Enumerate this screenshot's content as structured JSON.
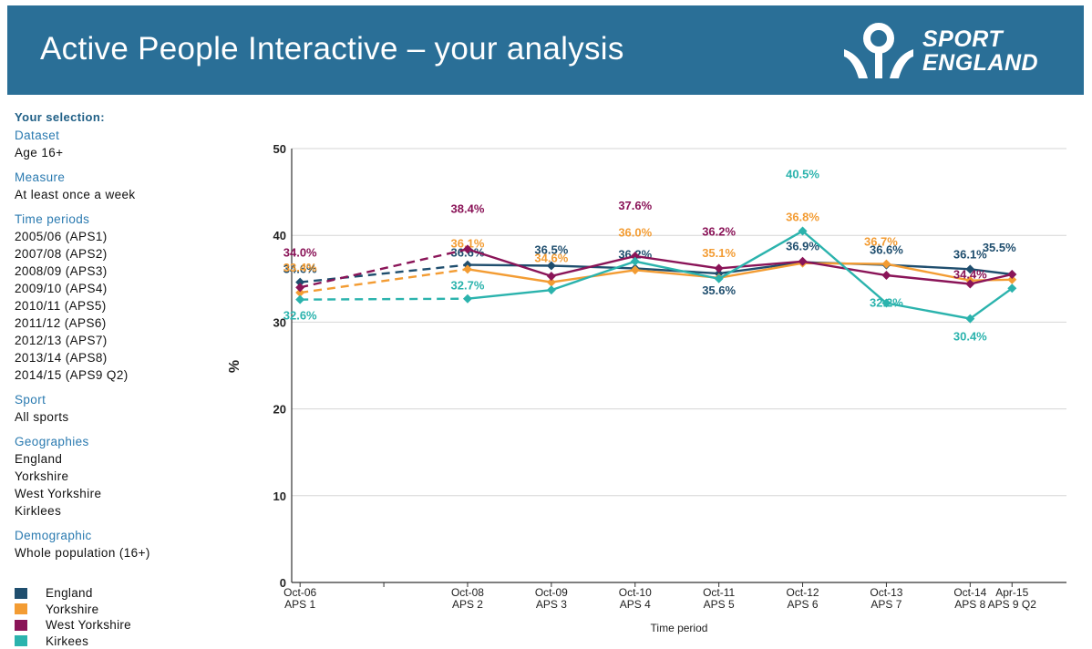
{
  "header": {
    "title": "Active People Interactive – your analysis",
    "logo_line1": "SPORT",
    "logo_line2": "ENGLAND",
    "background": "#2a6f97"
  },
  "selection": {
    "heading": "Your selection:",
    "dataset_label": "Dataset",
    "dataset_value": "Age 16+",
    "measure_label": "Measure",
    "measure_value": "At least once a week",
    "time_periods_label": "Time periods",
    "time_periods": [
      "2005/06 (APS1)",
      "2007/08 (APS2)",
      "2008/09 (APS3)",
      "2009/10 (APS4)",
      "2010/11 (APS5)",
      "2011/12 (APS6)",
      "2012/13 (APS7)",
      "2013/14 (APS8)",
      "2014/15 (APS9 Q2)"
    ],
    "sport_label": "Sport",
    "sport_value": "All sports",
    "geographies_label": "Geographies",
    "geographies": [
      "England",
      "Yorkshire",
      "West Yorkshire",
      "Kirklees"
    ],
    "demographic_label": "Demographic",
    "demographic_value": "Whole population (16+)"
  },
  "legend": [
    {
      "label": "England",
      "color": "#1f4e6e"
    },
    {
      "label": "Yorkshire",
      "color": "#f39c33"
    },
    {
      "label": "West Yorkshire",
      "color": "#8a1458"
    },
    {
      "label": "Kirkees",
      "color": "#2bb3ad"
    }
  ],
  "chart_data": {
    "type": "line",
    "ylabel": "%",
    "xlabel": "Time period",
    "ylim": [
      0,
      50
    ],
    "yticks": [
      "0",
      "10",
      "20",
      "30",
      "40",
      "50"
    ],
    "categories": [
      {
        "top": "Oct-06",
        "bottom": "APS 1"
      },
      {
        "top": "Oct-08",
        "bottom": "APS 2"
      },
      {
        "top": "Oct-09",
        "bottom": "APS 3"
      },
      {
        "top": "Oct-10",
        "bottom": "APS 4"
      },
      {
        "top": "Oct-11",
        "bottom": "APS 5"
      },
      {
        "top": "Oct-12",
        "bottom": "APS 6"
      },
      {
        "top": "Oct-13",
        "bottom": "APS 7"
      },
      {
        "top": "Oct-14",
        "bottom": "APS 8"
      },
      {
        "top": "Apr-15",
        "bottom": "APS 9 Q2"
      }
    ],
    "x_positions": [
      2006.75,
      2008.75,
      2009.75,
      2010.75,
      2011.75,
      2012.75,
      2013.75,
      2014.75,
      2015.25
    ],
    "x_range": [
      2006.65,
      2015.9
    ],
    "dashed_segment": "first",
    "grid": true,
    "series": [
      {
        "name": "England",
        "color": "#1f4e6e",
        "values": [
          34.6,
          36.6,
          36.5,
          36.2,
          35.6,
          36.9,
          36.6,
          36.1,
          35.5
        ],
        "labels": [
          "34.6%",
          "36.6%",
          "36.5%",
          "36.2%",
          "35.6%",
          "36.9%",
          "36.6%",
          "36.1%",
          "35.5%"
        ]
      },
      {
        "name": "Yorkshire",
        "color": "#f39c33",
        "values": [
          33.4,
          36.1,
          34.6,
          36.0,
          35.1,
          36.8,
          36.7,
          34.8,
          34.9
        ],
        "labels": [
          "33.4%",
          "36.1%",
          "34.6%",
          "36.0%",
          "35.1%",
          "36.8%",
          "36.7%",
          "",
          ""
        ]
      },
      {
        "name": "West Yorkshire",
        "color": "#8a1458",
        "values": [
          34.0,
          38.4,
          35.3,
          37.6,
          36.2,
          37.0,
          35.4,
          34.4,
          35.5
        ],
        "labels": [
          "34.0%",
          "38.4%",
          "",
          "37.6%",
          "36.2%",
          "",
          "",
          "34.4%",
          ""
        ]
      },
      {
        "name": "Kirkees",
        "color": "#2bb3ad",
        "values": [
          32.6,
          32.7,
          33.7,
          37.0,
          35.0,
          40.5,
          32.2,
          30.4,
          33.9
        ],
        "labels": [
          "32.6%",
          "32.7%",
          "",
          "",
          "",
          "40.5%",
          "32.2%",
          "30.4%",
          ""
        ]
      }
    ]
  }
}
